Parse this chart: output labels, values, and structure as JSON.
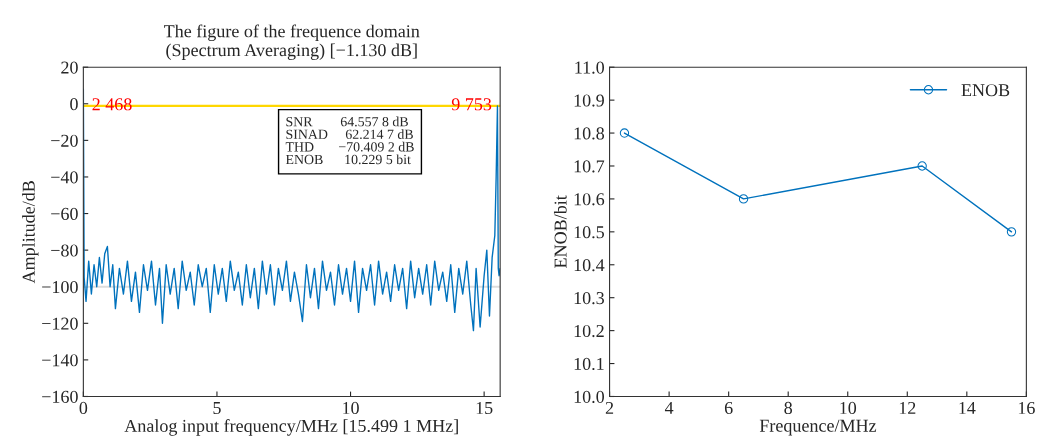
{
  "chart_data": [
    {
      "type": "line",
      "title": "The figure of the frequence domain\n(Spectrum Averaging) [−1.130 dB]",
      "xlabel": "Analog input frequency/MHz [15.499 1 MHz]",
      "ylabel": "Amplitude/dB",
      "series": [
        {
          "color": "#0072bd",
          "x": [
            0,
            0.03,
            0.1,
            0.2,
            0.3,
            0.4,
            0.5,
            0.6,
            0.7,
            0.8,
            0.9,
            1.0,
            1.1,
            1.2,
            1.35,
            1.5,
            1.65,
            1.8,
            1.95,
            2.1,
            2.25,
            2.4,
            2.55,
            2.7,
            2.85,
            2.96,
            3.1,
            3.25,
            3.4,
            3.55,
            3.7,
            3.85,
            4.0,
            4.15,
            4.3,
            4.45,
            4.6,
            4.75,
            4.9,
            5.05,
            5.2,
            5.35,
            5.5,
            5.65,
            5.8,
            5.95,
            6.1,
            6.25,
            6.4,
            6.55,
            6.7,
            6.85,
            7.0,
            7.15,
            7.3,
            7.45,
            7.6,
            7.75,
            7.9,
            8.05,
            8.2,
            8.35,
            8.5,
            8.65,
            8.8,
            8.95,
            9.1,
            9.25,
            9.4,
            9.55,
            9.7,
            9.85,
            10.0,
            10.15,
            10.3,
            10.45,
            10.6,
            10.75,
            10.9,
            11.05,
            11.2,
            11.35,
            11.5,
            11.65,
            11.8,
            11.95,
            12.1,
            12.25,
            12.4,
            12.55,
            12.7,
            12.85,
            13.0,
            13.15,
            13.3,
            13.45,
            13.6,
            13.75,
            13.9,
            14.05,
            14.2,
            14.35,
            14.5,
            14.6,
            14.7,
            14.85,
            15.0,
            15.1,
            15.2,
            15.3,
            15.4,
            15.45,
            15.499,
            15.53,
            15.56,
            15.6
          ],
          "values": [
            8,
            -95,
            -108,
            -86,
            -104,
            -88,
            -100,
            -84,
            -98,
            -82,
            -78,
            -100,
            -88,
            -112,
            -90,
            -104,
            -86,
            -108,
            -92,
            -114,
            -88,
            -102,
            -86,
            -110,
            -90,
            -120,
            -88,
            -104,
            -90,
            -112,
            -86,
            -102,
            -92,
            -110,
            -88,
            -100,
            -90,
            -114,
            -88,
            -104,
            -90,
            -108,
            -86,
            -102,
            -92,
            -110,
            -88,
            -106,
            -90,
            -112,
            -86,
            -104,
            -88,
            -110,
            -90,
            -102,
            -86,
            -108,
            -92,
            -104,
            -119,
            -88,
            -106,
            -90,
            -112,
            -86,
            -102,
            -92,
            -110,
            -88,
            -104,
            -90,
            -108,
            -86,
            -114,
            -90,
            -102,
            -88,
            -110,
            -86,
            -104,
            -92,
            -108,
            -88,
            -102,
            -90,
            -112,
            -86,
            -106,
            -90,
            -104,
            -88,
            -110,
            -86,
            -102,
            -92,
            -108,
            -88,
            -114,
            -90,
            -104,
            -86,
            -110,
            -124,
            -90,
            -122,
            -94,
            -80,
            -116,
            -84,
            -72,
            -40,
            -1.13,
            -90,
            -94,
            -90
          ]
        }
      ],
      "xlim": [
        0,
        15.6
      ],
      "xticks": [
        0,
        5,
        10,
        15
      ],
      "ylim": [
        -160,
        20
      ],
      "yticks": [
        20,
        0,
        {
          "value": -20,
          "label": "−20"
        },
        {
          "value": -40,
          "label": "−40"
        },
        {
          "value": -60,
          "label": "−60"
        },
        {
          "value": -80,
          "label": "−80"
        },
        {
          "value": -100,
          "label": "−100"
        },
        {
          "value": -120,
          "label": "−120"
        },
        {
          "value": -140,
          "label": "−140"
        },
        {
          "value": -160,
          "label": "−160"
        }
      ],
      "ref_lines": [
        {
          "axis": "y",
          "value": -1.13,
          "color": "#ffd700"
        },
        {
          "axis": "y",
          "value": -100,
          "color": "#dddddd"
        }
      ],
      "annotations": [
        {
          "text": "2 468",
          "x": 0,
          "y": -1.13
        },
        {
          "text": "9 753",
          "x": 15.499,
          "y": -1.13
        },
        "SNR        64.557 8 dB",
        "SINAD     62.214 7 dB",
        "THD       −70.409 2 dB",
        "ENOB      10.229 5 bit"
      ],
      "grid": false,
      "legend": false
    },
    {
      "type": "line",
      "xlabel": "Frequence/MHz",
      "ylabel": "ENOB/bit",
      "series": [
        {
          "name": "ENOB",
          "color": "#0072bd",
          "x": [
            2.5,
            6.5,
            12.5,
            15.5
          ],
          "values": [
            10.8,
            10.6,
            10.7,
            10.5
          ]
        }
      ],
      "marker": "circle",
      "xlim": [
        2,
        16
      ],
      "xticks": [
        2,
        4,
        6,
        8,
        10,
        12,
        14,
        16
      ],
      "ylim": [
        10.0,
        11.0
      ],
      "yticks": [
        {
          "value": 10.0,
          "label": "10.0"
        },
        10.1,
        10.2,
        10.3,
        10.4,
        10.5,
        10.6,
        10.7,
        10.8,
        10.9,
        {
          "value": 11.0,
          "label": "11.0"
        }
      ],
      "grid": false,
      "legend": "top right"
    }
  ]
}
